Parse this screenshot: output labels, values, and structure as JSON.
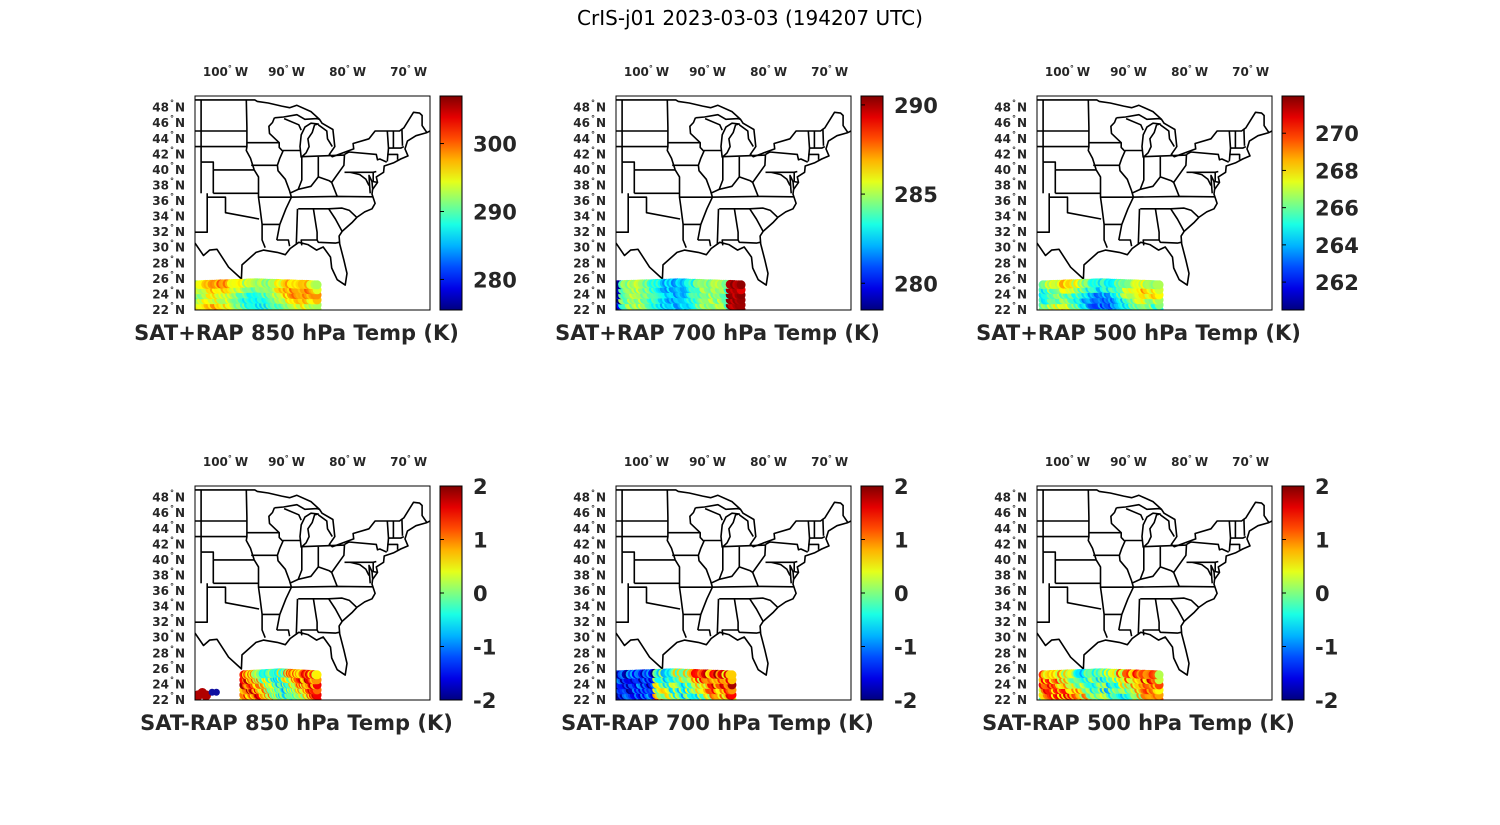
{
  "title": "CrIS-j01 2023-03-03 (194207 UTC)",
  "lon_ticks": [
    {
      "deg": 100,
      "label": "100",
      "hemi": "W"
    },
    {
      "deg": 90,
      "label": "90",
      "hemi": "W"
    },
    {
      "deg": 80,
      "label": "80",
      "hemi": "W"
    },
    {
      "deg": 70,
      "label": "70",
      "hemi": "W"
    }
  ],
  "lat_ticks": [
    {
      "deg": 22,
      "label": "22",
      "hemi": "N"
    },
    {
      "deg": 24,
      "label": "24",
      "hemi": "N"
    },
    {
      "deg": 26,
      "label": "26",
      "hemi": "N"
    },
    {
      "deg": 28,
      "label": "28",
      "hemi": "N"
    },
    {
      "deg": 30,
      "label": "30",
      "hemi": "N"
    },
    {
      "deg": 32,
      "label": "32",
      "hemi": "N"
    },
    {
      "deg": 34,
      "label": "34",
      "hemi": "N"
    },
    {
      "deg": 36,
      "label": "36",
      "hemi": "N"
    },
    {
      "deg": 38,
      "label": "38",
      "hemi": "N"
    },
    {
      "deg": 40,
      "label": "40",
      "hemi": "N"
    },
    {
      "deg": 42,
      "label": "42",
      "hemi": "N"
    },
    {
      "deg": 44,
      "label": "44",
      "hemi": "N"
    },
    {
      "deg": 46,
      "label": "46",
      "hemi": "N"
    },
    {
      "deg": 48,
      "label": "48",
      "hemi": "N"
    }
  ],
  "map_extent": {
    "lon": [
      -105,
      -66.5
    ],
    "lat": [
      22,
      49.5
    ]
  },
  "colormap": "jet",
  "panels": [
    {
      "title": "SAT+RAP 850 hPa Temp (K)",
      "clim": [
        275.5,
        307
      ],
      "cbar_ticks": [
        {
          "v": 280,
          "label": "280"
        },
        {
          "v": 290,
          "label": "290"
        },
        {
          "v": 300,
          "label": "300"
        }
      ],
      "swath": {
        "lon": [
          -105,
          -85
        ],
        "lat": [
          22,
          25.5
        ],
        "mean": 293,
        "amp": 7,
        "pattern": "swath"
      }
    },
    {
      "title": "SAT+RAP 700 hPa Temp (K)",
      "clim": [
        278.5,
        290.5
      ],
      "cbar_ticks": [
        {
          "v": 280,
          "label": "280"
        },
        {
          "v": 285,
          "label": "285"
        },
        {
          "v": 290,
          "label": "290"
        }
      ],
      "swath": {
        "lon": [
          -105,
          -84.5
        ],
        "lat": [
          22,
          25.5
        ],
        "mean": 283.5,
        "amp": 3.5,
        "pattern": "swath_hot_east"
      }
    },
    {
      "title": "SAT+RAP 500 hPa Temp (K)",
      "clim": [
        260.5,
        272
      ],
      "cbar_ticks": [
        {
          "v": 262,
          "label": "262"
        },
        {
          "v": 264,
          "label": "264"
        },
        {
          "v": 266,
          "label": "266"
        },
        {
          "v": 268,
          "label": "268"
        },
        {
          "v": 270,
          "label": "270"
        }
      ],
      "swath": {
        "lon": [
          -104,
          -85
        ],
        "lat": [
          22,
          25.5
        ],
        "mean": 265.5,
        "amp": 3,
        "pattern": "swath"
      }
    },
    {
      "title": "SAT-RAP 850 hPa Temp (K)",
      "clim": [
        -2,
        2
      ],
      "cbar_ticks": [
        {
          "v": -2,
          "label": "-2"
        },
        {
          "v": -1,
          "label": "-1"
        },
        {
          "v": 0,
          "label": "0"
        },
        {
          "v": 1,
          "label": "1"
        },
        {
          "v": 2,
          "label": "2"
        }
      ],
      "swath": {
        "lon": [
          -97,
          -85
        ],
        "lat": [
          22,
          25.5
        ],
        "mean": 0.5,
        "amp": 1.5,
        "pattern": "diff_850"
      }
    },
    {
      "title": "SAT-RAP 700 hPa Temp (K)",
      "clim": [
        -2,
        2
      ],
      "cbar_ticks": [
        {
          "v": -2,
          "label": "-2"
        },
        {
          "v": -1,
          "label": "-1"
        },
        {
          "v": 0,
          "label": "0"
        },
        {
          "v": 1,
          "label": "1"
        },
        {
          "v": 2,
          "label": "2"
        }
      ],
      "swath": {
        "lon": [
          -105,
          -86
        ],
        "lat": [
          22,
          25.5
        ],
        "mean": 0.5,
        "amp": 1.5,
        "pattern": "diff_700"
      }
    },
    {
      "title": "SAT-RAP 500 hPa Temp (K)",
      "clim": [
        -2,
        2
      ],
      "cbar_ticks": [
        {
          "v": -2,
          "label": "-2"
        },
        {
          "v": -1,
          "label": "-1"
        },
        {
          "v": 0,
          "label": "0"
        },
        {
          "v": 1,
          "label": "1"
        },
        {
          "v": 2,
          "label": "2"
        }
      ],
      "swath": {
        "lon": [
          -104,
          -85
        ],
        "lat": [
          22,
          25.5
        ],
        "mean": 0.4,
        "amp": 1.4,
        "pattern": "diff_500"
      }
    }
  ]
}
